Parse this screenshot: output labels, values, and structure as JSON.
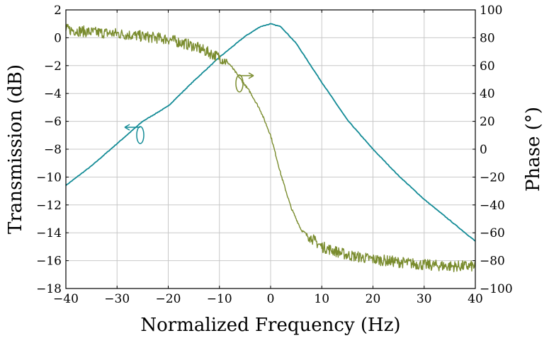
{
  "chart_data": {
    "type": "line",
    "xlabel": "Normalized Frequency (Hz)",
    "ylabel": "Transmission (dB)",
    "y2label": "Phase (°)",
    "xlim": [
      -40,
      40
    ],
    "ylim": [
      -18,
      2
    ],
    "y2lim": [
      -100,
      100
    ],
    "xticks": [
      "−40",
      "−30",
      "−20",
      "−10",
      "0",
      "10",
      "20",
      "30",
      "40"
    ],
    "yticks": [
      "−18",
      "−16",
      "−14",
      "−12",
      "−10",
      "−8",
      "−6",
      "−4",
      "−2",
      "0",
      "2"
    ],
    "y2ticks": [
      "−100",
      "−80",
      "−60",
      "−40",
      "−20",
      "0",
      "20",
      "40",
      "60",
      "80",
      "100"
    ],
    "grid": true,
    "series": [
      {
        "axis": "left",
        "color": "#138b96",
        "x": [
          -40,
          -35,
          -30,
          -25,
          -20,
          -15,
          -10,
          -5,
          -2,
          0,
          2,
          5,
          10,
          15,
          20,
          25,
          30,
          35,
          40
        ],
        "y": [
          -10.6,
          -9.2,
          -7.6,
          -6.0,
          -4.9,
          -3.1,
          -1.4,
          0.1,
          0.8,
          1.0,
          0.8,
          -0.4,
          -3.2,
          -5.9,
          -8.0,
          -9.9,
          -11.6,
          -13.1,
          -14.6
        ]
      },
      {
        "axis": "right",
        "color": "#7a8c2e",
        "noisy": true,
        "x": [
          -40,
          -35,
          -30,
          -25,
          -20,
          -15,
          -10,
          -8,
          -6,
          -4,
          -2,
          0,
          2,
          4,
          6,
          10,
          15,
          20,
          25,
          30,
          35,
          40
        ],
        "y": [
          86,
          84,
          83,
          81,
          79,
          74,
          66,
          61,
          51,
          41,
          28,
          10,
          -18,
          -42,
          -58,
          -70,
          -76,
          -79,
          -81,
          -83,
          -84,
          -84
        ]
      }
    ]
  }
}
